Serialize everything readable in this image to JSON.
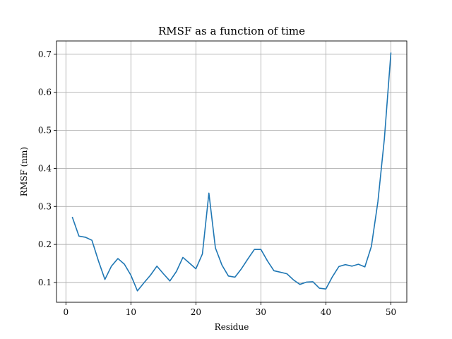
{
  "chart_data": {
    "type": "line",
    "title": "RMSF as a function of time",
    "xlabel": "Residue",
    "ylabel": "RMSF (nm)",
    "xlim": [
      -1.45,
      52.45
    ],
    "ylim": [
      0.048,
      0.735
    ],
    "xticks": [
      0,
      10,
      20,
      30,
      40,
      50
    ],
    "yticks": [
      0.1,
      0.2,
      0.3,
      0.4,
      0.5,
      0.6,
      0.7
    ],
    "grid": true,
    "line_color": "#1f77b4",
    "series": [
      {
        "x": [
          1,
          2,
          3,
          4,
          5,
          6,
          7,
          8,
          9,
          10,
          11,
          12,
          13,
          14,
          15,
          16,
          17,
          18,
          19,
          20,
          21,
          22,
          23,
          24,
          25,
          26,
          27,
          28,
          29,
          30,
          31,
          32,
          33,
          34,
          35,
          36,
          37,
          38,
          39,
          40,
          41,
          42,
          43,
          44,
          45,
          46,
          47,
          48,
          49,
          50
        ],
        "values": [
          0.271,
          0.222,
          0.219,
          0.211,
          0.157,
          0.108,
          0.143,
          0.163,
          0.148,
          0.119,
          0.078,
          0.099,
          0.119,
          0.143,
          0.123,
          0.104,
          0.129,
          0.166,
          0.151,
          0.136,
          0.175,
          0.335,
          0.191,
          0.146,
          0.117,
          0.114,
          0.136,
          0.162,
          0.187,
          0.187,
          0.157,
          0.131,
          0.127,
          0.123,
          0.107,
          0.095,
          0.101,
          0.102,
          0.085,
          0.083,
          0.115,
          0.142,
          0.147,
          0.143,
          0.148,
          0.141,
          0.195,
          0.312,
          0.478,
          0.703
        ]
      }
    ]
  }
}
